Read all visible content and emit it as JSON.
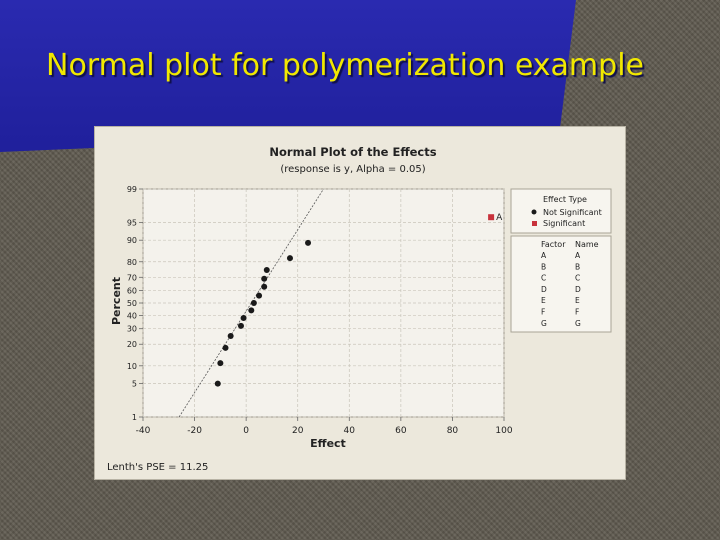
{
  "slide": {
    "title": "Normal plot for polymerization example"
  },
  "chart_data": {
    "type": "scatter",
    "title": "Normal Plot of the Effects",
    "subtitle": "(response is y, Alpha = 0.05)",
    "xlabel": "Effect",
    "ylabel": "Percent",
    "xlim": [
      -40,
      100
    ],
    "ylim": [
      1,
      99
    ],
    "y_scale": "normal-probability",
    "x_ticks": [
      -40,
      -20,
      0,
      20,
      40,
      60,
      80,
      100
    ],
    "x_tick_labels": [
      "-40",
      "-20",
      "0",
      "20",
      "40",
      "60",
      "80",
      "100"
    ],
    "y_ticks": [
      1,
      5,
      10,
      20,
      30,
      40,
      50,
      60,
      70,
      80,
      90,
      95,
      99
    ],
    "y_tick_labels": [
      "1",
      "5",
      "10",
      "20",
      "30",
      "40",
      "50",
      "60",
      "70",
      "80",
      "90",
      "95",
      "99"
    ],
    "grid": true,
    "footnote": "Lenth's PSE = 11.25",
    "reference_line": {
      "x": [
        -26,
        30
      ],
      "y": [
        1,
        99
      ]
    },
    "series": [
      {
        "name": "Not Significant",
        "color": "#1a1a1a",
        "marker": "circle",
        "points": [
          {
            "x": -11,
            "y": 5
          },
          {
            "x": -10,
            "y": 11
          },
          {
            "x": -8,
            "y": 18
          },
          {
            "x": -6,
            "y": 25
          },
          {
            "x": -2,
            "y": 32
          },
          {
            "x": -1,
            "y": 38
          },
          {
            "x": 2,
            "y": 44
          },
          {
            "x": 3,
            "y": 50
          },
          {
            "x": 5,
            "y": 56
          },
          {
            "x": 7,
            "y": 63
          },
          {
            "x": 7,
            "y": 69
          },
          {
            "x": 8,
            "y": 75
          },
          {
            "x": 17,
            "y": 82
          },
          {
            "x": 24,
            "y": 89
          }
        ]
      },
      {
        "name": "Significant",
        "color": "#c8323c",
        "marker": "square",
        "points": [
          {
            "x": 95,
            "y": 96,
            "label": "A"
          }
        ]
      }
    ],
    "legend": {
      "placement": "right",
      "effect_type_title": "Effect Type",
      "factor_header": "Factor",
      "name_header": "Name",
      "factors": [
        {
          "factor": "A",
          "name": "A"
        },
        {
          "factor": "B",
          "name": "B"
        },
        {
          "factor": "C",
          "name": "C"
        },
        {
          "factor": "D",
          "name": "D"
        },
        {
          "factor": "E",
          "name": "E"
        },
        {
          "factor": "F",
          "name": "F"
        },
        {
          "factor": "G",
          "name": "G"
        }
      ]
    }
  }
}
